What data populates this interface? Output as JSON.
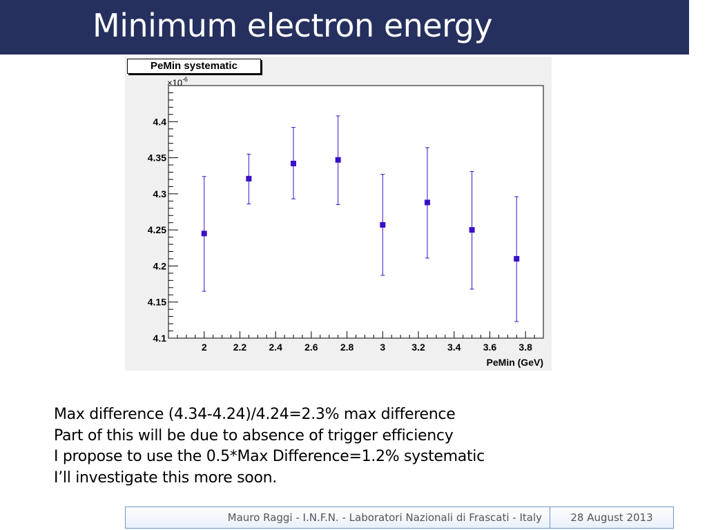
{
  "slide": {
    "title": "Minimum electron energy",
    "bullets": [
      "Max difference (4.34-4.24)/4.24=2.3% max difference",
      "Part of this will be due to absence of trigger efficiency",
      "I propose to use the 0.5*Max Difference=1.2% systematic",
      "I’ll investigate this more soon."
    ]
  },
  "footer": {
    "author": "Mauro Raggi - I.N.F.N. - Laboratori Nazionali di Frascati - Italy",
    "date": "28 August 2013"
  },
  "chart_data": {
    "type": "scatter",
    "title": "PeMin systematic",
    "xlabel": "PeMin (GeV)",
    "ylabel": "",
    "y_exponent_base": "×10",
    "y_exponent_power": "-6",
    "xlim": [
      1.8,
      3.9
    ],
    "ylim": [
      4.1,
      4.45
    ],
    "x_ticks": [
      2,
      2.2,
      2.4,
      2.6,
      2.8,
      3,
      3.2,
      3.4,
      3.6,
      3.8
    ],
    "x_tick_labels": [
      "2",
      "2.2",
      "2.4",
      "2.6",
      "2.8",
      "3",
      "3.2",
      "3.4",
      "3.6",
      "3.8"
    ],
    "y_ticks": [
      4.1,
      4.15,
      4.2,
      4.25,
      4.3,
      4.35,
      4.4
    ],
    "y_tick_labels": [
      "4.1",
      "4.15",
      "4.2",
      "4.25",
      "4.3",
      "4.35",
      "4.4"
    ],
    "grid": false,
    "marker_color": "#3a0fc8",
    "points": [
      {
        "x": 2.0,
        "y": 4.245,
        "err_low": 4.165,
        "err_high": 4.324
      },
      {
        "x": 2.25,
        "y": 4.321,
        "err_low": 4.286,
        "err_high": 4.355
      },
      {
        "x": 2.5,
        "y": 4.342,
        "err_low": 4.293,
        "err_high": 4.392
      },
      {
        "x": 2.75,
        "y": 4.347,
        "err_low": 4.285,
        "err_high": 4.408
      },
      {
        "x": 3.0,
        "y": 4.257,
        "err_low": 4.187,
        "err_high": 4.327
      },
      {
        "x": 3.25,
        "y": 4.288,
        "err_low": 4.211,
        "err_high": 4.364
      },
      {
        "x": 3.5,
        "y": 4.25,
        "err_low": 4.168,
        "err_high": 4.331
      },
      {
        "x": 3.75,
        "y": 4.21,
        "err_low": 4.123,
        "err_high": 4.296
      }
    ]
  }
}
